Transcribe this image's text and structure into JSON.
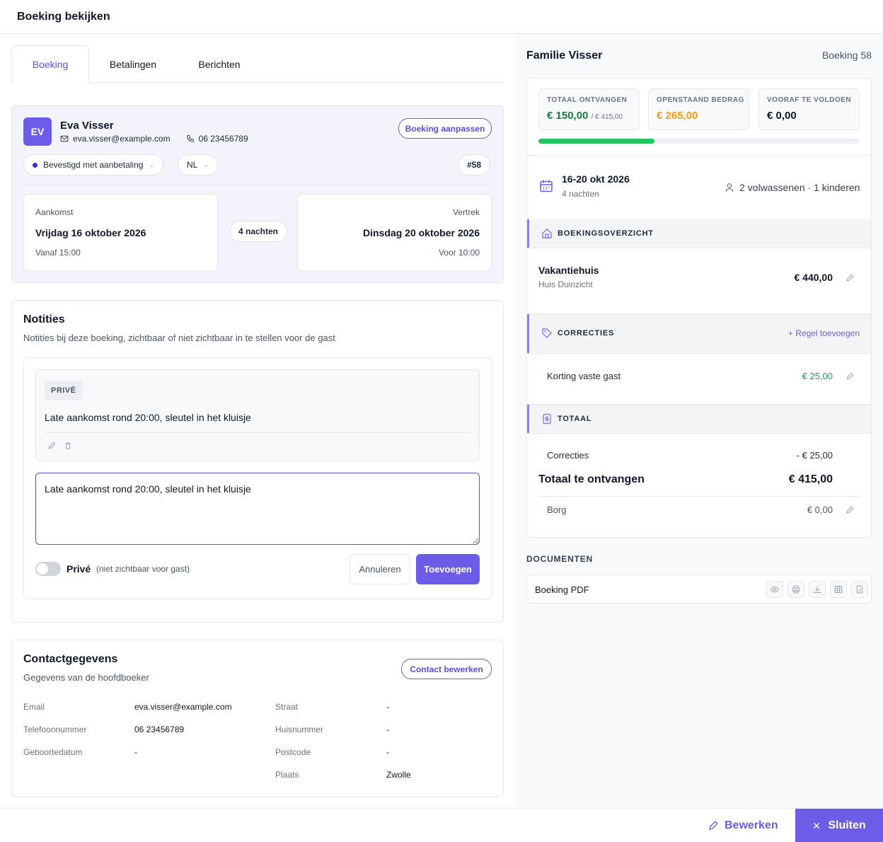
{
  "window": {
    "title": "Boeking bekijken"
  },
  "tabs": [
    {
      "label": "Boeking",
      "active": true
    },
    {
      "label": "Betalingen",
      "active": false
    },
    {
      "label": "Berichten",
      "active": false
    }
  ],
  "guest": {
    "initials": "EV",
    "name": "Eva Visser",
    "email": "eva.visser@example.com",
    "phone": "06 23456789",
    "edit_button": "Boeking aanpassen",
    "status": "Bevestigd met aanbetaling",
    "language": "NL",
    "booking_ref": "#58",
    "arrival": {
      "label": "Aankomst",
      "date": "Vrijdag 16 oktober 2026",
      "time": "Vanaf 15:00"
    },
    "nights": "4 nachten",
    "departure": {
      "label": "Vertrek",
      "date": "Dinsdag 20 oktober 2026",
      "time": "Voor 10:00"
    }
  },
  "notes": {
    "title": "Notities",
    "subtitle": "Notities bij deze boeking, zichtbaar of niet zichtbaar in te stellen voor de gast",
    "items": [
      {
        "badge": "PRIVÉ",
        "text": "Late aankomst rond 20:00, sleutel in het kluisje"
      }
    ],
    "input_value": "Late aankomst rond 20:00, sleutel in het kluisje",
    "toggle_label": "Privé",
    "toggle_hint": "(niet zichtbaar voor gast)",
    "cancel_button": "Annuleren",
    "add_button": "Toevoegen"
  },
  "contact": {
    "title": "Contactgegevens",
    "subtitle": "Gegevens van de hoofdboeker",
    "edit_button": "Contact bewerken",
    "left_fields": [
      {
        "label": "Email",
        "value": "eva.visser@example.com"
      },
      {
        "label": "Telefoonnummer",
        "value": "06 23456789"
      },
      {
        "label": "Geboortedatum",
        "value": "-"
      }
    ],
    "right_fields": [
      {
        "label": "Straat",
        "value": "-"
      },
      {
        "label": "Huisnummer",
        "value": "-"
      },
      {
        "label": "Postcode",
        "value": "-"
      },
      {
        "label": "Plaats",
        "value": "Zwolle"
      }
    ]
  },
  "summary": {
    "family": "Familie Visser",
    "booking_number": "Boeking 58",
    "stats": [
      {
        "label": "TOTAAL ONTVANGEN",
        "value": "€ 150,00",
        "extra": "/ € 415,00",
        "color": "#15803d"
      },
      {
        "label": "OPENSTAAND BEDRAG",
        "value": "€ 265,00",
        "extra": "",
        "color": "#f59e0b"
      },
      {
        "label": "VOORAF TE VOLDOEN",
        "value": "€ 0,00",
        "extra": "",
        "color": "#111827"
      }
    ],
    "progress": 0.3614,
    "dates": "16-20 okt 2026",
    "nights": "4 nachten",
    "guests": "2 volwassenen · 1 kinderen",
    "overview_label": "BOEKINGSOVERZICHT",
    "accommodation": {
      "name": "Vakantiehuis",
      "sub": "Huis Duinzicht",
      "price": "€ 440,00"
    },
    "corrections_label": "CORRECTIES",
    "add_line": "+ Regel toevoegen",
    "correction": {
      "name": "Korting vaste gast",
      "amount": "€ 25,00"
    },
    "total_label": "TOTAAL",
    "corrections_total": {
      "label": "Correcties",
      "amount": "- € 25,00"
    },
    "grand_total": {
      "label": "Totaal te ontvangen",
      "amount": "€ 415,00"
    },
    "deposit": {
      "label": "Borg",
      "amount": "€ 0,00"
    }
  },
  "documents": {
    "title": "DOCUMENTEN",
    "items": [
      {
        "name": "Booking PDF",
        "label": "Boeking PDF"
      }
    ]
  },
  "footer": {
    "edit": "Bewerken",
    "close": "Sluiten"
  },
  "colors": {
    "accent": "#6d5ce8",
    "success": "#22c55e",
    "warning": "#f59e0b"
  }
}
